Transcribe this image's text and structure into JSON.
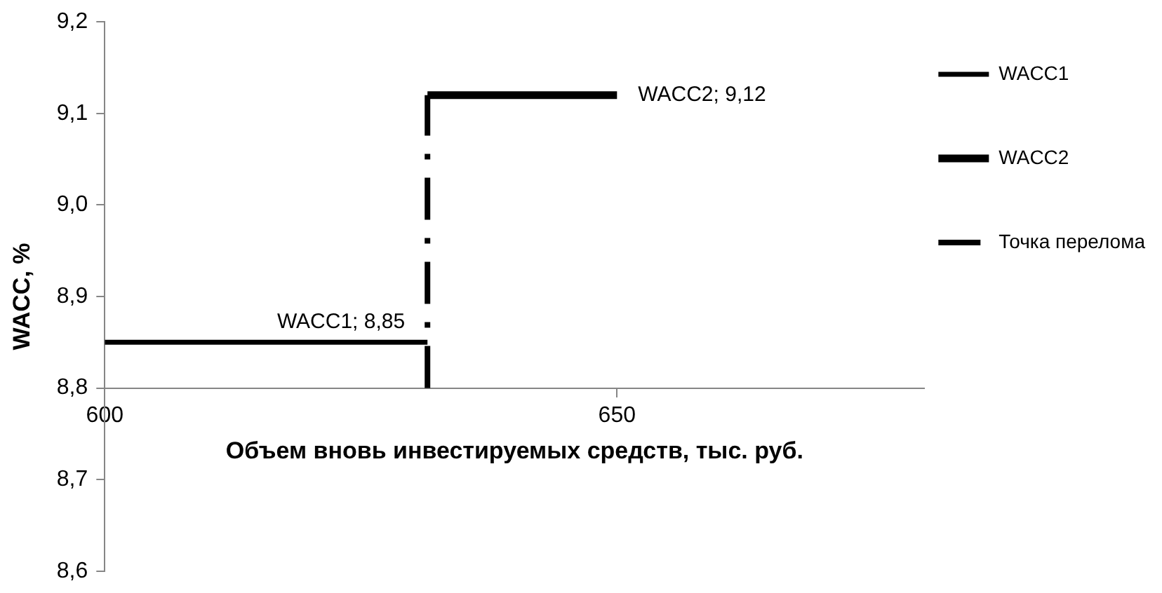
{
  "chart_data": {
    "type": "line",
    "xlabel": "Объем вновь инвестируемых средств, тыс. руб.",
    "ylabel": "WACC, %",
    "xlim": [
      600,
      680
    ],
    "xticks": [
      600,
      650
    ],
    "ylim": [
      8.6,
      9.2
    ],
    "yticks": [
      {
        "value": 8.6,
        "label": "8,6"
      },
      {
        "value": 8.7,
        "label": "8,7"
      },
      {
        "value": 8.8,
        "label": "8,8"
      },
      {
        "value": 8.9,
        "label": "8,9"
      },
      {
        "value": 9.0,
        "label": "9,0"
      },
      {
        "value": 9.1,
        "label": "9,1"
      },
      {
        "value": 9.2,
        "label": "9,2"
      }
    ],
    "series": [
      {
        "name": "WACC1",
        "color": "#000000",
        "x": [
          600,
          631.5
        ],
        "values": [
          8.85,
          8.85
        ],
        "value_labels": [
          null,
          "WACC1; 8,85"
        ]
      },
      {
        "name": "WACC2",
        "color": "#000000",
        "x": [
          631.5,
          650
        ],
        "values": [
          9.12,
          9.12
        ],
        "value_labels": [
          null,
          "WACC2; 9,12"
        ]
      },
      {
        "name": "Точка перелома",
        "color": "#000000",
        "x": [
          631.5,
          631.5
        ],
        "values": [
          8.8,
          9.12
        ],
        "line_style": "dashdot"
      }
    ],
    "legend": "right",
    "marker": "none"
  }
}
